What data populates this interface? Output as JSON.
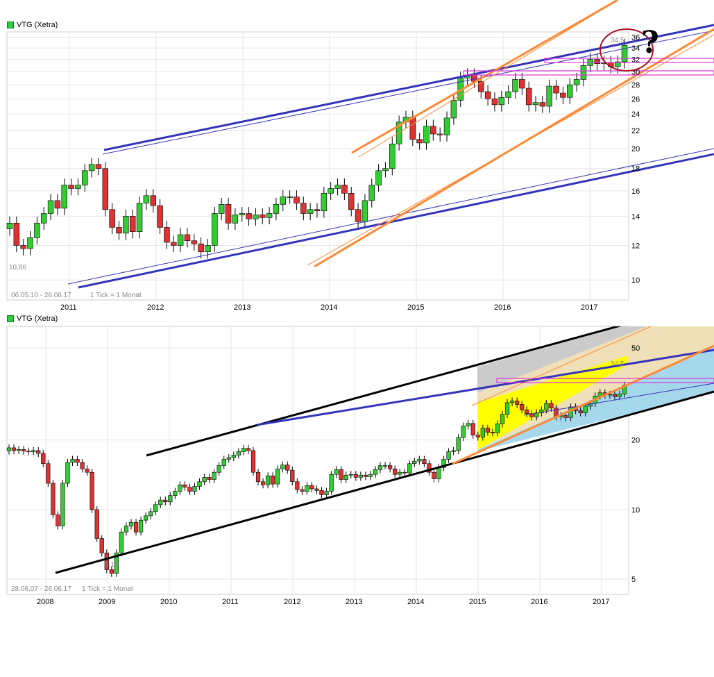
{
  "chart_data": [
    {
      "type": "candlestick",
      "legend": "VTG (Xetra)",
      "range_note": "06.05.10 - 26.06.17",
      "tick_note": "1 Tick = 1 Monat",
      "low_label": "10,86",
      "high_label": "34,5",
      "scale": "log",
      "ylim": [
        9,
        37
      ],
      "y_ticks": [
        10,
        12,
        14,
        16,
        18,
        20,
        22,
        24,
        26,
        28,
        30,
        32,
        34,
        36
      ],
      "x_ticks": [
        "2011",
        "2012",
        "2013",
        "2014",
        "2015",
        "2016",
        "2017"
      ],
      "colors": {
        "up": "#33cc33",
        "down": "#dd3333",
        "trend": "#3333bb",
        "channel": "#ff8833",
        "resistance": "#dd33dd",
        "circle": "#aa1122"
      },
      "close": [
        13.5,
        12,
        11.8,
        12.5,
        13.5,
        14.2,
        15.2,
        14.6,
        16.5,
        16.2,
        16.5,
        17.8,
        18.4,
        18,
        14.5,
        13.2,
        12.8,
        14,
        12.9,
        15,
        15.6,
        14.8,
        13.2,
        12.2,
        12,
        12.7,
        12.3,
        12.1,
        11.6,
        12,
        14.2,
        14.9,
        13.5,
        14.1,
        14.2,
        13.8,
        14.1,
        13.9,
        14.2,
        14.9,
        15.5,
        15.5,
        15,
        14.2,
        14.5,
        14.4,
        15.8,
        16.2,
        16.5,
        15.8,
        14.5,
        13.6,
        15.2,
        16.5,
        17.8,
        18,
        20.5,
        23,
        23.6,
        21,
        20.6,
        22.5,
        21.6,
        21.5,
        23.5,
        25.8,
        29,
        29.5,
        28.5,
        27,
        26,
        25.2,
        26.2,
        27,
        28.8,
        27.5,
        25.2,
        25.5,
        25,
        27.8,
        26.8,
        26.2,
        28,
        28.8,
        31,
        32,
        31.3,
        31.5,
        30.8,
        31.6,
        34.5
      ]
    },
    {
      "type": "candlestick",
      "legend": "VTG (Xetra)",
      "range_note": "28.06.07 - 26.06.17",
      "tick_note": "1 Tick = 1 Monat",
      "low_label": "5,16",
      "high_label": "34,5",
      "scale": "log",
      "ylim": [
        4.3,
        62
      ],
      "y_ticks": [
        5,
        10,
        20,
        50
      ],
      "x_ticks": [
        "2008",
        "2009",
        "2010",
        "2011",
        "2012",
        "2013",
        "2014",
        "2015",
        "2016",
        "2017"
      ],
      "close": [
        18.5,
        18,
        18.2,
        17.9,
        17.8,
        18,
        17.5,
        15.8,
        13,
        9.5,
        8.5,
        13,
        16,
        16.5,
        16,
        15,
        14.5,
        10,
        7.5,
        6.5,
        5.5,
        5.3,
        6.5,
        8,
        8.5,
        8.8,
        8,
        9,
        9.4,
        9.8,
        10.5,
        11,
        10.8,
        11.5,
        12,
        12.8,
        12.5,
        12,
        12.6,
        13.2,
        13.8,
        13.5,
        14.5,
        15.5,
        16.5,
        16.8,
        17.2,
        17.8,
        18.4,
        18,
        14.5,
        13.2,
        12.8,
        14,
        12.9,
        15,
        15.6,
        14.8,
        13.2,
        12.2,
        12,
        12.7,
        12.3,
        12.1,
        11.6,
        12,
        14.2,
        14.9,
        13.5,
        14.1,
        14.2,
        13.8,
        14.1,
        13.9,
        14.2,
        14.9,
        15.5,
        15.5,
        15,
        14.2,
        14.5,
        14.4,
        15.8,
        16.2,
        16.5,
        15.8,
        14.5,
        13.6,
        15.2,
        16.5,
        17.8,
        18,
        20.5,
        23,
        23.6,
        21,
        20.6,
        22.5,
        21.6,
        21.5,
        23.5,
        25.8,
        29,
        29.5,
        28.5,
        27,
        26,
        25.2,
        26.2,
        27,
        28.8,
        27.5,
        25.2,
        25.5,
        25,
        27.8,
        26.8,
        26.2,
        28,
        28.8,
        31,
        32,
        31.3,
        31.5,
        30.8,
        31.6,
        34.5
      ]
    }
  ]
}
